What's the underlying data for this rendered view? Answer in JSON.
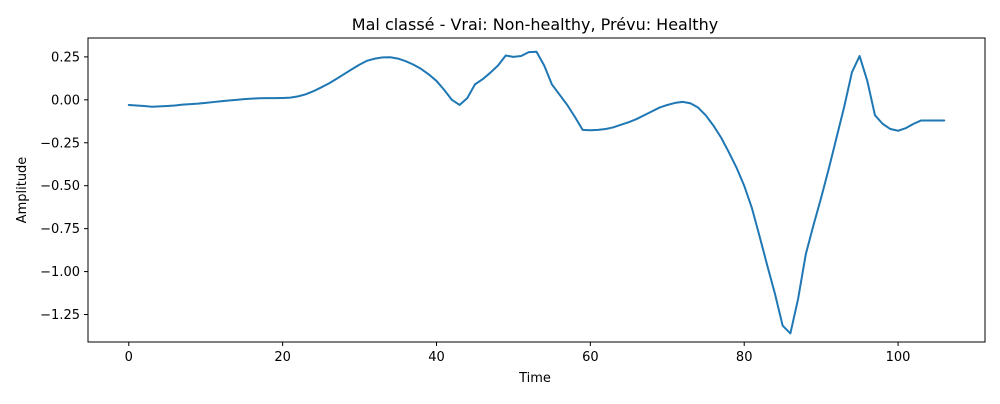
{
  "chart_data": {
    "type": "line",
    "title": "Mal classé - Vrai: Non-healthy, Prévu: Healthy",
    "xlabel": "Time",
    "ylabel": "Amplitude",
    "xlim": [
      -5.3,
      111.3
    ],
    "ylim": [
      -1.41,
      0.36
    ],
    "xticks": [
      0,
      20,
      40,
      60,
      80,
      100
    ],
    "xtick_labels": [
      "0",
      "20",
      "40",
      "60",
      "80",
      "100"
    ],
    "yticks": [
      0.25,
      0.0,
      -0.25,
      -0.5,
      -0.75,
      -1.0,
      -1.25
    ],
    "ytick_labels": [
      "0.25",
      "0.00",
      "−0.25",
      "−0.50",
      "−0.75",
      "−1.00",
      "−1.25"
    ],
    "grid": false,
    "legend": false,
    "series": [
      {
        "color": "#1f77b4",
        "x": [
          0,
          1,
          2,
          3,
          4,
          5,
          6,
          7,
          8,
          9,
          10,
          11,
          12,
          13,
          14,
          15,
          16,
          17,
          18,
          19,
          20,
          21,
          22,
          23,
          24,
          25,
          26,
          27,
          28,
          29,
          30,
          31,
          32,
          33,
          34,
          35,
          36,
          37,
          38,
          39,
          40,
          41,
          42,
          43,
          44,
          45,
          46,
          47,
          48,
          49,
          50,
          51,
          52,
          53,
          54,
          55,
          56,
          57,
          58,
          59,
          60,
          61,
          62,
          63,
          64,
          65,
          66,
          67,
          68,
          69,
          70,
          71,
          72,
          73,
          74,
          75,
          76,
          77,
          78,
          79,
          80,
          81,
          82,
          83,
          84,
          85,
          86,
          87,
          88,
          89,
          90,
          91,
          92,
          93,
          94,
          95,
          96,
          97,
          98,
          99,
          100,
          101,
          102,
          103,
          104,
          105,
          106
        ],
        "y": [
          -0.03,
          -0.033,
          -0.036,
          -0.04,
          -0.038,
          -0.036,
          -0.033,
          -0.028,
          -0.025,
          -0.022,
          -0.018,
          -0.013,
          -0.008,
          -0.004,
          0.0,
          0.004,
          0.007,
          0.009,
          0.01,
          0.01,
          0.011,
          0.013,
          0.02,
          0.032,
          0.05,
          0.072,
          0.095,
          0.122,
          0.15,
          0.178,
          0.205,
          0.228,
          0.24,
          0.247,
          0.248,
          0.24,
          0.225,
          0.205,
          0.18,
          0.148,
          0.11,
          0.058,
          0.0,
          -0.03,
          0.01,
          0.09,
          0.12,
          0.158,
          0.2,
          0.258,
          0.25,
          0.255,
          0.278,
          0.28,
          0.2,
          0.09,
          0.03,
          -0.03,
          -0.1,
          -0.175,
          -0.177,
          -0.175,
          -0.17,
          -0.16,
          -0.145,
          -0.13,
          -0.112,
          -0.09,
          -0.067,
          -0.045,
          -0.03,
          -0.018,
          -0.012,
          -0.02,
          -0.045,
          -0.09,
          -0.15,
          -0.22,
          -0.305,
          -0.395,
          -0.5,
          -0.63,
          -0.795,
          -0.965,
          -1.13,
          -1.315,
          -1.36,
          -1.16,
          -0.9,
          -0.73,
          -0.57,
          -0.4,
          -0.22,
          -0.04,
          0.16,
          0.255,
          0.11,
          -0.09,
          -0.14,
          -0.17,
          -0.18,
          -0.165,
          -0.14,
          -0.12,
          -0.12,
          -0.12,
          -0.12
        ]
      }
    ]
  }
}
